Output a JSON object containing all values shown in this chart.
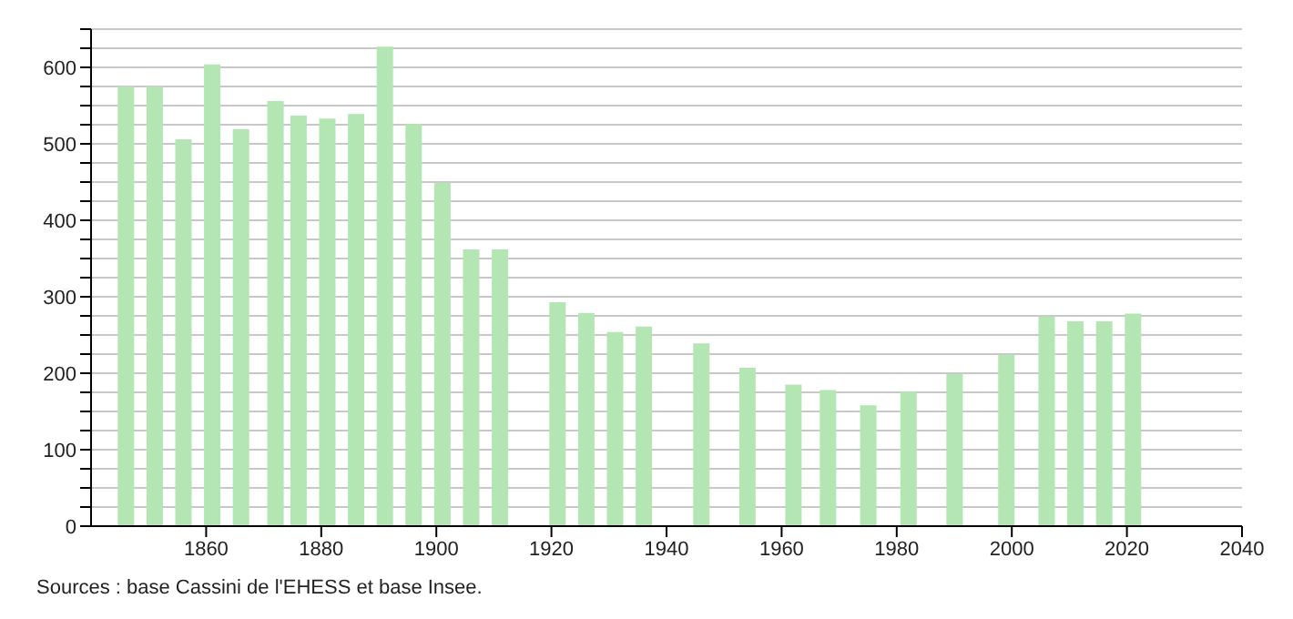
{
  "chart_data": {
    "type": "bar",
    "x": [
      1846,
      1851,
      1856,
      1861,
      1866,
      1872,
      1876,
      1881,
      1886,
      1891,
      1896,
      1901,
      1906,
      1911,
      1921,
      1926,
      1931,
      1936,
      1946,
      1954,
      1962,
      1968,
      1975,
      1982,
      1990,
      1999,
      2006,
      2011,
      2016,
      2021
    ],
    "values": [
      575,
      575,
      506,
      604,
      519,
      556,
      537,
      533,
      539,
      627,
      526,
      449,
      362,
      362,
      293,
      279,
      254,
      261,
      239,
      207,
      185,
      178,
      158,
      176,
      199,
      224,
      274,
      268,
      268,
      278
    ],
    "color": "#b3e6b3",
    "xlim": [
      1840,
      2040
    ],
    "xticks": [
      1860,
      1880,
      1900,
      1920,
      1940,
      1960,
      1980,
      2000,
      2020,
      2040
    ],
    "ylim": [
      0,
      650
    ],
    "yticks": [
      0,
      {
        "value": 25,
        "label": null
      },
      {
        "value": 50,
        "label": null
      },
      {
        "value": 75,
        "label": null
      },
      100,
      {
        "value": 125,
        "label": null
      },
      {
        "value": 150,
        "label": null
      },
      {
        "value": 175,
        "label": null
      },
      200,
      {
        "value": 225,
        "label": null
      },
      {
        "value": 250,
        "label": null
      },
      {
        "value": 275,
        "label": null
      },
      300,
      {
        "value": 325,
        "label": null
      },
      {
        "value": 350,
        "label": null
      },
      {
        "value": 375,
        "label": null
      },
      400,
      {
        "value": 425,
        "label": null
      },
      {
        "value": 450,
        "label": null
      },
      {
        "value": 475,
        "label": null
      },
      500,
      {
        "value": 525,
        "label": null
      },
      {
        "value": 550,
        "label": null
      },
      {
        "value": 575,
        "label": null
      },
      600,
      {
        "value": 625,
        "label": null
      },
      {
        "value": 650,
        "label": null
      }
    ],
    "grid": "y",
    "annotations": [
      "Sources : base Cassini de l'EHESS et base Insee."
    ]
  }
}
